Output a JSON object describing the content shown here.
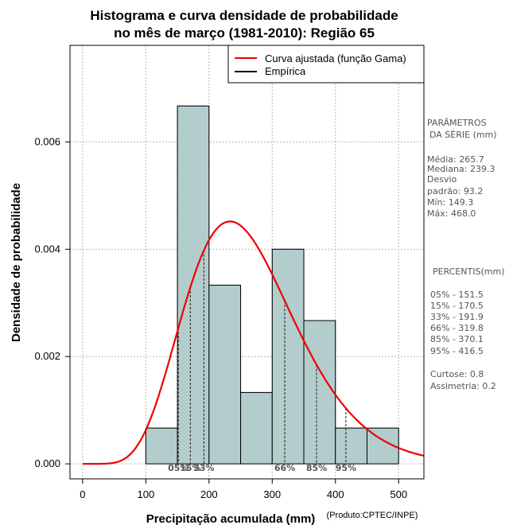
{
  "chart_data": {
    "type": "bar",
    "title_line1": "Histograma e curva densidade de probabilidade",
    "title_line2": "no mês de março (1981-2010): Região 65",
    "xlabel": "Precipitação acumulada (mm)",
    "ylabel": "Densidade de probabilidade",
    "credit": "(Produto:CPTEC/INPE)",
    "xlim": [
      -20,
      540
    ],
    "ylim": [
      -0.00028,
      0.0078
    ],
    "x_ticks": [
      0,
      100,
      200,
      300,
      400,
      500
    ],
    "y_ticks": [
      0.0,
      0.002,
      0.004,
      0.006
    ],
    "y_tick_labels": [
      "0.000",
      "0.002",
      "0.004",
      "0.006"
    ],
    "grid": true,
    "bins": [
      {
        "start": 100,
        "end": 150,
        "value": 0.000667
      },
      {
        "start": 150,
        "end": 200,
        "value": 0.00667
      },
      {
        "start": 200,
        "end": 250,
        "value": 0.00333
      },
      {
        "start": 250,
        "end": 300,
        "value": 0.00133
      },
      {
        "start": 300,
        "end": 350,
        "value": 0.004
      },
      {
        "start": 350,
        "end": 400,
        "value": 0.00267
      },
      {
        "start": 400,
        "end": 450,
        "value": 0.000667
      },
      {
        "start": 450,
        "end": 500,
        "value": 0.000667
      }
    ],
    "fitted_curve": {
      "name": "Curva ajustada (função Gama)",
      "shape": 8.14,
      "scale": 32.66,
      "color": "#ee0000"
    },
    "empirical_legend": "Empírica",
    "legend_position": "top-right",
    "bar_color": "#b3cdcd",
    "percentile_markers": [
      {
        "label": "05%",
        "value": 151.5
      },
      {
        "label": "15%",
        "value": 170.5
      },
      {
        "label": "33%",
        "value": 191.9
      },
      {
        "label": "66%",
        "value": 319.8
      },
      {
        "label": "85%",
        "value": 370.1
      },
      {
        "label": "95%",
        "value": 416.5
      }
    ],
    "side_panel": {
      "params_title_1": "PARÂMETROS",
      "params_title_2": "DA SÉRIE (mm)",
      "stats": [
        "Média:  265.7",
        "Mediana:  239.3",
        "Desvio",
        "padrão:  93.2",
        "Mín:  149.3",
        "Máx:  468.0"
      ],
      "percentis_title": "PERCENTIS(mm)",
      "percentis": [
        "05% -   151.5",
        "15% -   170.5",
        "33% -   191.9",
        "66% -   319.8",
        "85% -   370.1",
        "95% -   416.5"
      ],
      "extra": [
        "Curtose:  0.8",
        "Assimetria:  0.2"
      ]
    }
  }
}
